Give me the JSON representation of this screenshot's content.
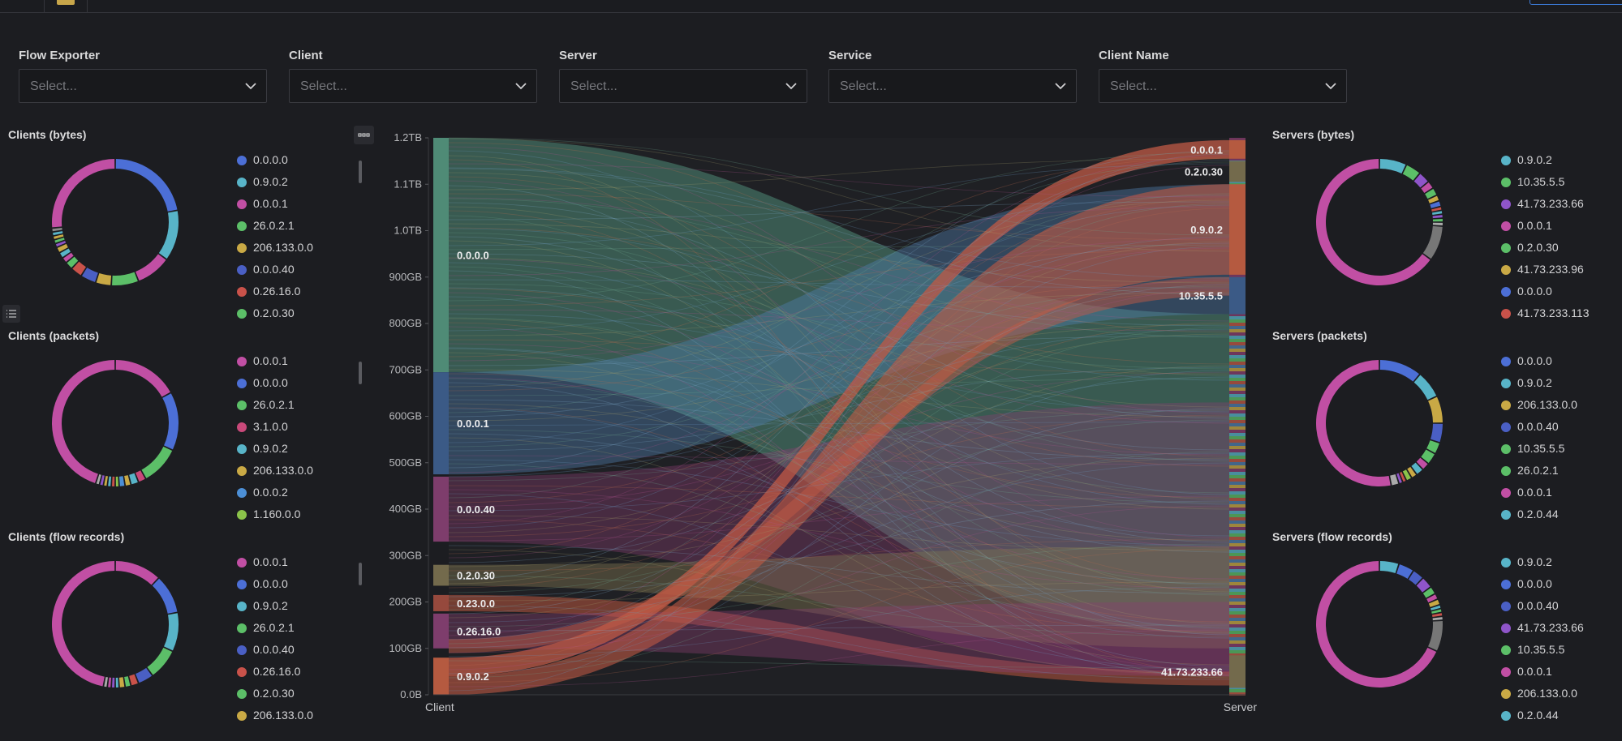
{
  "filters": [
    {
      "label": "Flow Exporter",
      "placeholder": "Select..."
    },
    {
      "label": "Client",
      "placeholder": "Select..."
    },
    {
      "label": "Server",
      "placeholder": "Select..."
    },
    {
      "label": "Service",
      "placeholder": "Select..."
    },
    {
      "label": "Client Name",
      "placeholder": "Select..."
    }
  ],
  "left_panels": [
    {
      "title": "Clients (bytes)",
      "legend": [
        {
          "label": "0.0.0.0",
          "color": "#4c6fd6"
        },
        {
          "label": "0.9.0.2",
          "color": "#58b4c8"
        },
        {
          "label": "0.0.0.1",
          "color": "#c14fa4"
        },
        {
          "label": "26.0.2.1",
          "color": "#5cbf68"
        },
        {
          "label": "206.133.0.0",
          "color": "#c9a945"
        },
        {
          "label": "0.0.0.40",
          "color": "#4a5fc4"
        },
        {
          "label": "0.26.16.0",
          "color": "#c9524a"
        },
        {
          "label": "0.2.0.30",
          "color": "#5cbf68"
        }
      ],
      "donut": [
        {
          "v": 22,
          "c": "#4c6fd6"
        },
        {
          "v": 13,
          "c": "#58b4c8"
        },
        {
          "v": 9,
          "c": "#c14fa4"
        },
        {
          "v": 7,
          "c": "#5cbf68"
        },
        {
          "v": 4,
          "c": "#c9a945"
        },
        {
          "v": 4,
          "c": "#4a5fc4"
        },
        {
          "v": 3,
          "c": "#c9524a"
        },
        {
          "v": 2,
          "c": "#5cbf68"
        },
        {
          "v": 1.5,
          "c": "#c14fa4"
        },
        {
          "v": 1.5,
          "c": "#58b4c8"
        },
        {
          "v": 1.5,
          "c": "#c9a945"
        },
        {
          "v": 1,
          "c": "#8f55c9"
        },
        {
          "v": 1,
          "c": "#5cbf68"
        },
        {
          "v": 1,
          "c": "#c9a945"
        },
        {
          "v": 1,
          "c": "#58b4c8"
        },
        {
          "v": 1,
          "c": "#8a8a8a"
        },
        {
          "v": 26.5,
          "c": "#c14fa4"
        }
      ],
      "gap": 0
    },
    {
      "title": "Clients (packets)",
      "legend": [
        {
          "label": "0.0.0.1",
          "color": "#c14fa4"
        },
        {
          "label": "0.0.0.0",
          "color": "#4c6fd6"
        },
        {
          "label": "26.0.2.1",
          "color": "#5cbf68"
        },
        {
          "label": "3.1.0.0",
          "color": "#c9497a"
        },
        {
          "label": "0.9.0.2",
          "color": "#58b4c8"
        },
        {
          "label": "206.133.0.0",
          "color": "#c9a945"
        },
        {
          "label": "0.0.0.2",
          "color": "#4c8fd6"
        },
        {
          "label": "1.160.0.0",
          "color": "#8bc34a"
        }
      ],
      "donut": [
        {
          "v": 17,
          "c": "#c14fa4"
        },
        {
          "v": 15,
          "c": "#4c6fd6"
        },
        {
          "v": 10,
          "c": "#5cbf68"
        },
        {
          "v": 2,
          "c": "#c9497a"
        },
        {
          "v": 2,
          "c": "#58b4c8"
        },
        {
          "v": 1.5,
          "c": "#c9a945"
        },
        {
          "v": 1.5,
          "c": "#4c8fd6"
        },
        {
          "v": 1,
          "c": "#8bc34a"
        },
        {
          "v": 1,
          "c": "#c9524a"
        },
        {
          "v": 1,
          "c": "#58b4c8"
        },
        {
          "v": 1,
          "c": "#c9a945"
        },
        {
          "v": 1,
          "c": "#8f55c9"
        },
        {
          "v": 1,
          "c": "#aaaaaa"
        },
        {
          "v": 45,
          "c": "#c14fa4"
        }
      ],
      "gap": 0
    },
    {
      "title": "Clients (flow records)",
      "legend": [
        {
          "label": "0.0.0.1",
          "color": "#c14fa4"
        },
        {
          "label": "0.0.0.0",
          "color": "#4c6fd6"
        },
        {
          "label": "0.9.0.2",
          "color": "#58b4c8"
        },
        {
          "label": "26.0.2.1",
          "color": "#5cbf68"
        },
        {
          "label": "0.0.0.40",
          "color": "#4a5fc4"
        },
        {
          "label": "0.26.16.0",
          "color": "#c9524a"
        },
        {
          "label": "0.2.0.30",
          "color": "#5cbf68"
        },
        {
          "label": "206.133.0.0",
          "color": "#c9a945"
        }
      ],
      "donut": [
        {
          "v": 12,
          "c": "#c14fa4"
        },
        {
          "v": 10,
          "c": "#4c6fd6"
        },
        {
          "v": 10,
          "c": "#58b4c8"
        },
        {
          "v": 8,
          "c": "#5cbf68"
        },
        {
          "v": 4,
          "c": "#4a5fc4"
        },
        {
          "v": 2,
          "c": "#c9524a"
        },
        {
          "v": 1.5,
          "c": "#5cbf68"
        },
        {
          "v": 1.5,
          "c": "#c9a945"
        },
        {
          "v": 1,
          "c": "#58b4c8"
        },
        {
          "v": 1,
          "c": "#8f55c9"
        },
        {
          "v": 1,
          "c": "#c14fa4"
        },
        {
          "v": 1,
          "c": "#aaaaaa"
        },
        {
          "v": 47,
          "c": "#c14fa4"
        }
      ],
      "gap": 0
    }
  ],
  "right_panels": [
    {
      "title": "Servers (bytes)",
      "legend": [
        {
          "label": "0.9.0.2",
          "color": "#58b4c8"
        },
        {
          "label": "10.35.5.5",
          "color": "#5cbf68"
        },
        {
          "label": "41.73.233.66",
          "color": "#8f55c9"
        },
        {
          "label": "0.0.0.1",
          "color": "#c14fa4"
        },
        {
          "label": "0.2.0.30",
          "color": "#5cbf68"
        },
        {
          "label": "41.73.233.96",
          "color": "#c9a945"
        },
        {
          "label": "0.0.0.0",
          "color": "#4c6fd6"
        },
        {
          "label": "41.73.233.113",
          "color": "#c9524a"
        }
      ],
      "donut": [
        {
          "v": 7,
          "c": "#58b4c8"
        },
        {
          "v": 4,
          "c": "#5cbf68"
        },
        {
          "v": 3,
          "c": "#8f55c9"
        },
        {
          "v": 2,
          "c": "#c14fa4"
        },
        {
          "v": 2,
          "c": "#5cbf68"
        },
        {
          "v": 1.5,
          "c": "#c9a945"
        },
        {
          "v": 1.5,
          "c": "#4c6fd6"
        },
        {
          "v": 1,
          "c": "#c9524a"
        },
        {
          "v": 1,
          "c": "#58b4c8"
        },
        {
          "v": 1,
          "c": "#8f55c9"
        },
        {
          "v": 1,
          "c": "#5cbf68"
        },
        {
          "v": 1,
          "c": "#aaaaaa"
        },
        {
          "v": 9,
          "c": "#777777"
        },
        {
          "v": 65,
          "c": "#c14fa4"
        }
      ],
      "gap": 1
    },
    {
      "title": "Servers (packets)",
      "legend": [
        {
          "label": "0.0.0.0",
          "color": "#4c6fd6"
        },
        {
          "label": "0.9.0.2",
          "color": "#58b4c8"
        },
        {
          "label": "206.133.0.0",
          "color": "#c9a945"
        },
        {
          "label": "0.0.0.40",
          "color": "#4a5fc4"
        },
        {
          "label": "10.35.5.5",
          "color": "#5cbf68"
        },
        {
          "label": "26.0.2.1",
          "color": "#5cbf68"
        },
        {
          "label": "0.0.0.1",
          "color": "#c14fa4"
        },
        {
          "label": "0.2.0.44",
          "color": "#58b4c8"
        }
      ],
      "donut": [
        {
          "v": 11,
          "c": "#4c6fd6"
        },
        {
          "v": 7,
          "c": "#58b4c8"
        },
        {
          "v": 7,
          "c": "#c9a945"
        },
        {
          "v": 5,
          "c": "#4a5fc4"
        },
        {
          "v": 3,
          "c": "#5cbf68"
        },
        {
          "v": 3,
          "c": "#5cbf68"
        },
        {
          "v": 2,
          "c": "#c14fa4"
        },
        {
          "v": 2,
          "c": "#58b4c8"
        },
        {
          "v": 1.5,
          "c": "#c9a945"
        },
        {
          "v": 1.5,
          "c": "#8bc34a"
        },
        {
          "v": 1,
          "c": "#c9524a"
        },
        {
          "v": 1,
          "c": "#8f55c9"
        },
        {
          "v": 2,
          "c": "#aaaaaa"
        },
        {
          "v": 53,
          "c": "#c14fa4"
        }
      ],
      "gap": 0
    },
    {
      "title": "Servers (flow records)",
      "legend": [
        {
          "label": "0.9.0.2",
          "color": "#58b4c8"
        },
        {
          "label": "0.0.0.0",
          "color": "#4c6fd6"
        },
        {
          "label": "0.0.0.40",
          "color": "#4a5fc4"
        },
        {
          "label": "41.73.233.66",
          "color": "#8f55c9"
        },
        {
          "label": "10.35.5.5",
          "color": "#5cbf68"
        },
        {
          "label": "0.0.0.1",
          "color": "#c14fa4"
        },
        {
          "label": "206.133.0.0",
          "color": "#c9a945"
        },
        {
          "label": "0.2.0.44",
          "color": "#58b4c8"
        }
      ],
      "donut": [
        {
          "v": 5,
          "c": "#58b4c8"
        },
        {
          "v": 4,
          "c": "#4c6fd6"
        },
        {
          "v": 3,
          "c": "#4a5fc4"
        },
        {
          "v": 3,
          "c": "#8f55c9"
        },
        {
          "v": 2,
          "c": "#5cbf68"
        },
        {
          "v": 1.5,
          "c": "#c14fa4"
        },
        {
          "v": 1.5,
          "c": "#c9a945"
        },
        {
          "v": 1,
          "c": "#58b4c8"
        },
        {
          "v": 1,
          "c": "#5cbf68"
        },
        {
          "v": 1,
          "c": "#c9524a"
        },
        {
          "v": 1,
          "c": "#aaaaaa"
        },
        {
          "v": 8,
          "c": "#777777"
        },
        {
          "v": 68,
          "c": "#c14fa4"
        }
      ],
      "gap": 1
    }
  ],
  "chart_data": {
    "type": "sankey",
    "left_axis_label": "Client",
    "right_axis_label": "Server",
    "y_unit": "bytes",
    "ylim": [
      0,
      1.2
    ],
    "y_ticks": [
      "0.0B",
      "100GB",
      "200GB",
      "300GB",
      "400GB",
      "500GB",
      "600GB",
      "700GB",
      "800GB",
      "900GB",
      "1.0TB",
      "1.1TB",
      "1.2TB"
    ],
    "left_nodes": [
      {
        "label": "0.0.0.0",
        "start": 0.695,
        "end": 1.2,
        "color": "#4f8b76"
      },
      {
        "label": "0.0.0.1",
        "start": 0.475,
        "end": 0.695,
        "color": "#3b5a86"
      },
      {
        "label": "0.0.0.40",
        "start": 0.33,
        "end": 0.47,
        "color": "#7e3d6c"
      },
      {
        "label": "0.2.0.30",
        "start": 0.235,
        "end": 0.28,
        "color": "#736a4c"
      },
      {
        "label": "0.23.0.0",
        "start": 0.18,
        "end": 0.215,
        "color": "#96493d"
      },
      {
        "label": "0.26.16.0",
        "start": 0.1,
        "end": 0.175,
        "color": "#7e3d6c"
      },
      {
        "label": "0.9.0.2",
        "start": 0,
        "end": 0.08,
        "color": "#b55a40"
      }
    ],
    "right_nodes": [
      {
        "label": "0.0.0.1",
        "start": 1.155,
        "end": 1.195,
        "color": "#b55a40"
      },
      {
        "label": "0.2.0.30",
        "start": 1.105,
        "end": 1.15,
        "color": "#736a4c"
      },
      {
        "label": "0.9.0.2",
        "start": 0.905,
        "end": 1.1,
        "color": "#b55a40"
      },
      {
        "label": "10.35.5.5",
        "start": 0.82,
        "end": 0.9,
        "color": "#3b5a86"
      },
      {
        "label": "41.73.233.66",
        "start": 0.015,
        "end": 0.085,
        "color": "#736a4c"
      }
    ],
    "flows": [
      {
        "from": "0.0.0.0",
        "to": "many",
        "value": 0.5,
        "color": "#4f8b76"
      },
      {
        "from": "0.0.0.1",
        "to": "10.35.5.5",
        "value": 0.22,
        "color": "#4f7fae"
      },
      {
        "from": "0.9.0.2",
        "to": "0.0.0.1",
        "value": 0.04,
        "color": "#c05a45"
      },
      {
        "from": "0.9.0.2",
        "to": "0.9.0.2",
        "value": 0.04,
        "color": "#c05a45"
      }
    ]
  }
}
